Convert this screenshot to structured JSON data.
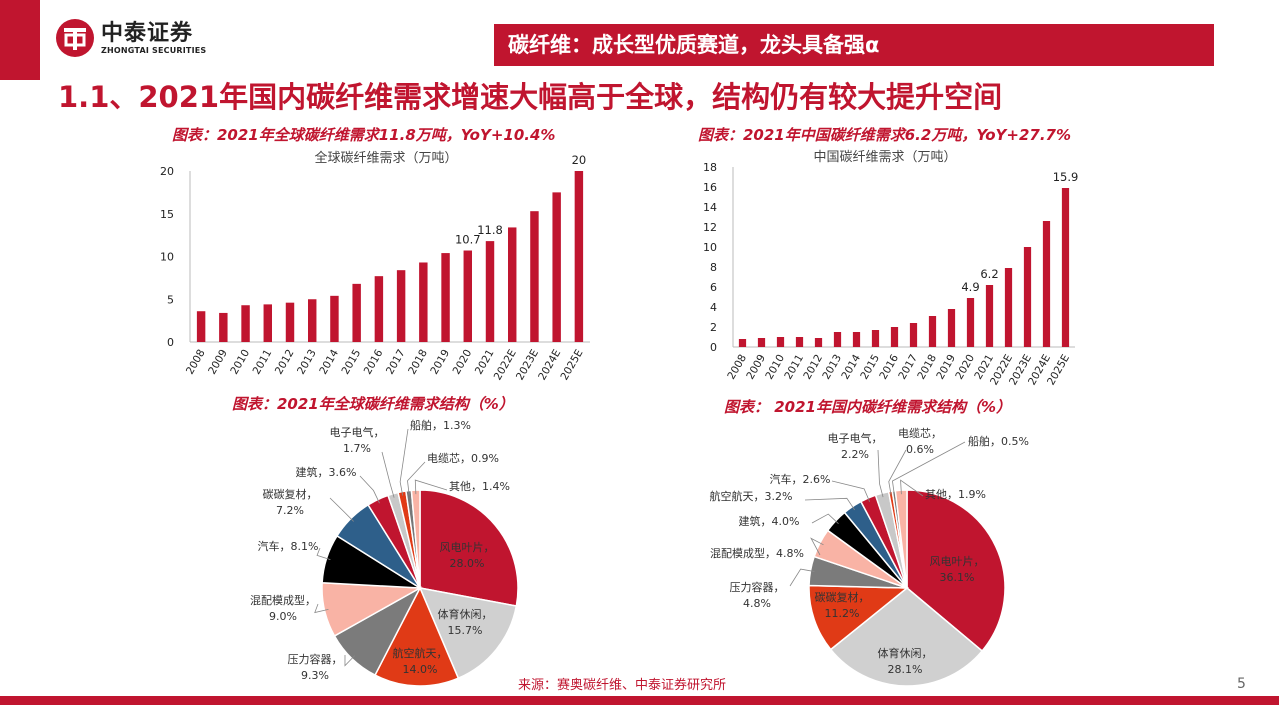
{
  "header": {
    "logo_cn": "中泰证券",
    "logo_en": "ZHONGTAI SECURITIES",
    "banner": "碳纤维：成长型优质赛道，龙头具备强α",
    "headline": "1.1、2021年国内碳纤维需求增速大幅高于全球，结构仍有较大提升空间"
  },
  "colors": {
    "brand_red": "#c0152f"
  },
  "chart_titles": {
    "global_bar": "图表：2021年全球碳纤维需求11.8万吨，YoY+10.4%",
    "china_bar": "图表：2021年中国碳纤维需求6.2万吨，YoY+27.7%",
    "global_pie": "图表：2021年全球碳纤维需求结构（%）",
    "china_pie": "图表：  2021年国内碳纤维需求结构（%）"
  },
  "chart_data": [
    {
      "type": "bar",
      "title": "全球碳纤维需求（万吨）",
      "categories": [
        "2008",
        "2009",
        "2010",
        "2011",
        "2012",
        "2013",
        "2014",
        "2015",
        "2016",
        "2017",
        "2018",
        "2019",
        "2020",
        "2021",
        "2022E",
        "2023E",
        "2024E",
        "2025E"
      ],
      "values": [
        3.6,
        3.4,
        4.3,
        4.4,
        4.6,
        5.0,
        5.4,
        6.8,
        7.7,
        8.4,
        9.3,
        10.4,
        10.7,
        11.8,
        13.4,
        15.3,
        17.5,
        20
      ],
      "labels": {
        "12": "10.7",
        "13": "11.8",
        "17": "20"
      },
      "ylim": [
        0,
        20
      ],
      "yticks": [
        0,
        5,
        10,
        15,
        20
      ],
      "color": "#c0152f"
    },
    {
      "type": "bar",
      "title": "中国碳纤维需求（万吨）",
      "categories": [
        "2008",
        "2009",
        "2010",
        "2011",
        "2012",
        "2013",
        "2014",
        "2015",
        "2016",
        "2017",
        "2018",
        "2019",
        "2020",
        "2021",
        "2022E",
        "2023E",
        "2024E",
        "2025E"
      ],
      "values": [
        0.8,
        0.9,
        1.0,
        1.0,
        0.9,
        1.5,
        1.5,
        1.7,
        2.0,
        2.4,
        3.1,
        3.8,
        4.9,
        6.2,
        7.9,
        10.0,
        12.6,
        15.9
      ],
      "labels": {
        "12": "4.9",
        "13": "6.2",
        "17": "15.9"
      },
      "ylim": [
        0,
        18
      ],
      "yticks": [
        0,
        2,
        4,
        6,
        8,
        10,
        12,
        14,
        16,
        18
      ],
      "color": "#c0152f"
    },
    {
      "type": "pie",
      "slices": [
        {
          "name": "风电叶片",
          "value": 28.0,
          "label": "风电叶片，\n28.0%",
          "color": "#c0152f"
        },
        {
          "name": "体育休闲",
          "value": 15.7,
          "label": "体育休闲，\n15.7%",
          "color": "#d0d0d0"
        },
        {
          "name": "航空航天",
          "value": 14.0,
          "label": "航空航天，\n14.0%",
          "color": "#e03a16"
        },
        {
          "name": "压力容器",
          "value": 9.3,
          "label": "压力容器，\n9.3%",
          "color": "#7b7b7b"
        },
        {
          "name": "混配模成型",
          "value": 9.0,
          "label": "混配模成型，\n9.0%",
          "color": "#f9b3a5"
        },
        {
          "name": "汽车",
          "value": 8.1,
          "label": "汽车，8.1%",
          "color": "#000000"
        },
        {
          "name": "碳碳复材",
          "value": 7.2,
          "label": "碳碳复材，\n7.2%",
          "color": "#2e5f8a"
        },
        {
          "name": "建筑",
          "value": 3.6,
          "label": "建筑，3.6%",
          "color": "#c0152f"
        },
        {
          "name": "电子电气",
          "value": 1.7,
          "label": "电子电气，\n1.7%",
          "color": "#c8c8c8"
        },
        {
          "name": "船舶",
          "value": 1.3,
          "label": "船舶，1.3%",
          "color": "#e03a16"
        },
        {
          "name": "电缆芯",
          "value": 0.9,
          "label": "电缆芯，0.9%",
          "color": "#777777"
        },
        {
          "name": "其他",
          "value": 1.4,
          "label": "其他，1.4%",
          "color": "#f9b3a5"
        }
      ]
    },
    {
      "type": "pie",
      "slices": [
        {
          "name": "风电叶片",
          "value": 36.1,
          "label": "风电叶片，\n36.1%",
          "color": "#c0152f"
        },
        {
          "name": "体育休闲",
          "value": 28.1,
          "label": "体育休闲，\n28.1%",
          "color": "#d0d0d0"
        },
        {
          "name": "碳碳复材",
          "value": 11.2,
          "label": "碳碳复材，\n11.2%",
          "color": "#e03a16"
        },
        {
          "name": "压力容器",
          "value": 4.8,
          "label": "压力容器，\n4.8%",
          "color": "#7b7b7b"
        },
        {
          "name": "混配模成型",
          "value": 4.8,
          "label": "混配模成型，4.8%",
          "color": "#f9b3a5"
        },
        {
          "name": "建筑",
          "value": 4.0,
          "label": "建筑，4.0%",
          "color": "#000000"
        },
        {
          "name": "航空航天",
          "value": 3.2,
          "label": "航空航天，3.2%",
          "color": "#2e5f8a"
        },
        {
          "name": "汽车",
          "value": 2.6,
          "label": "汽车，2.6%",
          "color": "#c0152f"
        },
        {
          "name": "电子电气",
          "value": 2.2,
          "label": "电子电气，\n2.2%",
          "color": "#c8c8c8"
        },
        {
          "name": "电缆芯",
          "value": 0.6,
          "label": "电缆芯，\n0.6%",
          "color": "#e03a16"
        },
        {
          "name": "船舶",
          "value": 0.5,
          "label": "船舶，0.5%",
          "color": "#777777"
        },
        {
          "name": "其他",
          "value": 1.9,
          "label": "其他，1.9%",
          "color": "#f9b3a5"
        }
      ]
    }
  ],
  "footer": {
    "source": "来源：赛奥碳纤维、中泰证券研究所",
    "page": "5"
  }
}
